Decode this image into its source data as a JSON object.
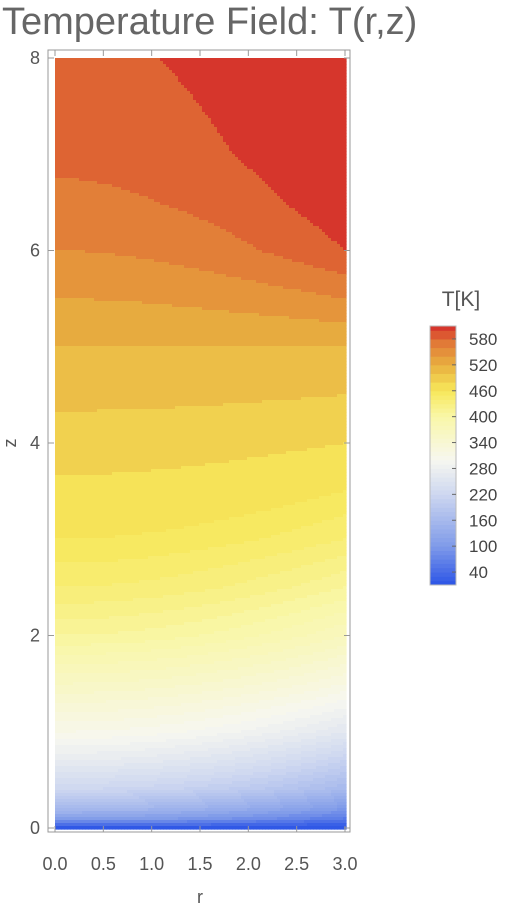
{
  "chart_data": {
    "type": "heatmap",
    "subtype": "filled-contour",
    "title": "Temperature Field: T(r,z)",
    "xlabel": "r",
    "ylabel": "z",
    "xlim": [
      0,
      3
    ],
    "ylim": [
      0,
      8
    ],
    "x_ticks": [
      0.0,
      0.5,
      1.0,
      1.5,
      2.0,
      2.5,
      3.0
    ],
    "x_tick_labels": [
      "0.0",
      "0.5",
      "1.0",
      "1.5",
      "2.0",
      "2.5",
      "3.0"
    ],
    "y_ticks": [
      0,
      2,
      4,
      6,
      8
    ],
    "y_tick_labels": [
      "0",
      "2",
      "4",
      "6",
      "8"
    ],
    "grid": false,
    "legend": {
      "title": "T[K]",
      "placement": "right",
      "range": [
        10,
        610
      ],
      "ticks": [
        40,
        100,
        160,
        220,
        280,
        340,
        400,
        460,
        520,
        580
      ],
      "tick_labels": [
        "40",
        "100",
        "160",
        "220",
        "280",
        "340",
        "400",
        "460",
        "520",
        "580"
      ]
    },
    "colormap": {
      "stops": [
        {
          "value": 10,
          "color": "#2b54e6"
        },
        {
          "value": 100,
          "color": "#7f9ae9"
        },
        {
          "value": 220,
          "color": "#cdd7f0"
        },
        {
          "value": 300,
          "color": "#f7f7f0"
        },
        {
          "value": 400,
          "color": "#f9f7a8"
        },
        {
          "value": 460,
          "color": "#f7e85a"
        },
        {
          "value": 520,
          "color": "#e8b040"
        },
        {
          "value": 580,
          "color": "#e06f35"
        },
        {
          "value": 610,
          "color": "#d42a2a"
        }
      ]
    },
    "contour_levels": [
      10,
      20,
      30,
      40,
      50,
      60,
      70,
      80,
      90,
      100,
      110,
      120,
      130,
      140,
      150,
      160,
      170,
      180,
      190,
      200,
      210,
      220,
      230,
      240,
      250,
      260,
      270,
      280,
      290,
      300,
      310,
      320,
      330,
      340,
      350,
      360,
      370,
      380,
      390,
      400,
      410,
      420,
      430,
      440,
      450,
      460,
      480,
      500,
      520,
      540,
      560,
      580,
      600
    ],
    "field_samples": {
      "z": [
        0,
        0.05,
        0.1,
        0.2,
        0.4,
        0.7,
        1.0,
        1.5,
        2.0,
        2.5,
        3.0,
        3.5,
        4.0,
        4.5,
        5.0,
        5.5,
        6.0,
        6.5,
        7.0,
        7.5,
        8.0
      ],
      "T_at_r0": [
        10,
        60,
        110,
        160,
        220,
        270,
        310,
        360,
        410,
        440,
        460,
        475,
        490,
        505,
        520,
        540,
        560,
        575,
        585,
        590,
        595
      ],
      "T_at_r3": [
        10,
        30,
        60,
        100,
        160,
        210,
        260,
        320,
        370,
        410,
        440,
        460,
        480,
        500,
        520,
        560,
        600,
        615,
        625,
        630,
        635
      ]
    }
  }
}
